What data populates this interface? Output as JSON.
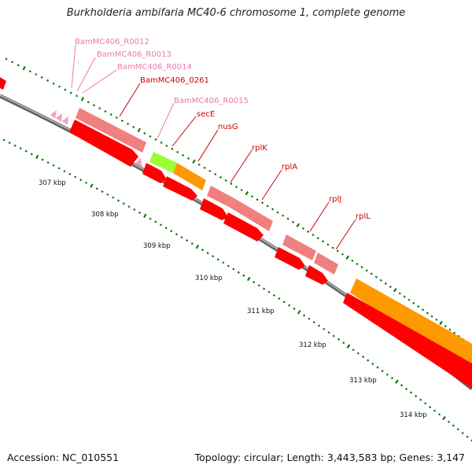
{
  "title": "Burkholderia ambifaria MC40-6 chromosome 1, complete genome",
  "footer": {
    "accession": "Accession: NC_010551",
    "topology": "Topology: circular; Length: 3,443,583 bp; Genes: 3,147"
  },
  "ruler": [
    {
      "label": "307 kbp"
    },
    {
      "label": "308 kbp"
    },
    {
      "label": "309 kbp"
    },
    {
      "label": "310 kbp"
    },
    {
      "label": "311 kbp"
    },
    {
      "label": "312 kbp"
    },
    {
      "label": "313 kbp"
    },
    {
      "label": "314 kbp"
    }
  ],
  "labels": [
    {
      "text": "BamMC406_R0012",
      "color": "#e87aa8"
    },
    {
      "text": "BamMC406_R0013",
      "color": "#e87aa8"
    },
    {
      "text": "BamMC406_R0014",
      "color": "#e87aa8"
    },
    {
      "text": "BamMC406_0261",
      "color": "#cc0000"
    },
    {
      "text": "BamMC406_R0015",
      "color": "#e87aa8"
    },
    {
      "text": "secE",
      "color": "#cc0000"
    },
    {
      "text": "nusG",
      "color": "#cc0000"
    },
    {
      "text": "rplK",
      "color": "#cc0000"
    },
    {
      "text": "rplA",
      "color": "#cc0000"
    },
    {
      "text": "rplJ",
      "color": "#cc0000"
    },
    {
      "text": "rplL",
      "color": "#cc0000"
    }
  ],
  "colors": {
    "cds": "#ff0000",
    "gene": "#f08080",
    "trna": "#f4a0c0",
    "orange": "#ff9900",
    "green": "#99ff33",
    "backbone": "#888888",
    "tick": "#117711"
  }
}
